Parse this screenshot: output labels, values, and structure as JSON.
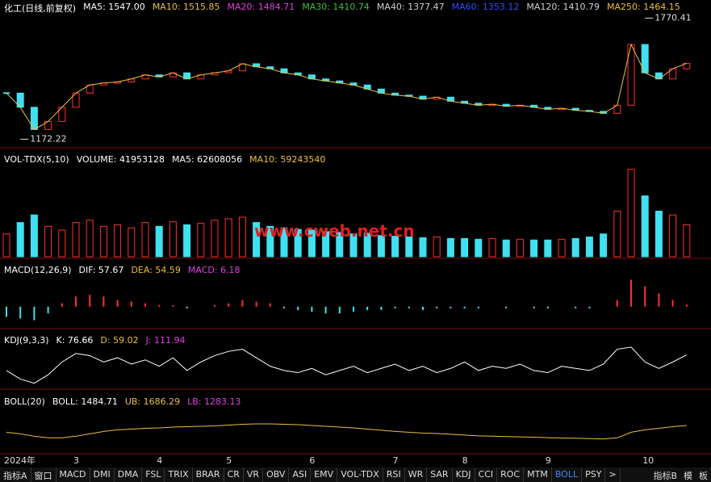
{
  "panels": {
    "price": {
      "header": [
        {
          "text": "化工(日线,前复权)",
          "color": "#ffffff"
        },
        {
          "text": "MA5: 1547.00",
          "color": "#ffffff"
        },
        {
          "text": "MA10: 1515.85",
          "color": "#e8c13f"
        },
        {
          "text": "MA20: 1484.71",
          "color": "#e040e0"
        },
        {
          "text": "MA30: 1410.74",
          "color": "#40c040"
        },
        {
          "text": "MA40: 1377.47",
          "color": "#d0d0d0"
        },
        {
          "text": "MA60: 1353.12",
          "color": "#3050ff"
        },
        {
          "text": "MA120: 1410.79",
          "color": "#d0d0d0"
        },
        {
          "text": "MA250: 1464.15",
          "color": "#e8c13f"
        }
      ],
      "ylim": [
        1150,
        1800
      ],
      "close": [
        1400,
        1330,
        1220,
        1260,
        1330,
        1400,
        1440,
        1450,
        1455,
        1470,
        1490,
        1480,
        1500,
        1470,
        1490,
        1500,
        1510,
        1545,
        1530,
        1520,
        1500,
        1490,
        1470,
        1460,
        1450,
        1440,
        1420,
        1400,
        1390,
        1385,
        1370,
        1380,
        1360,
        1350,
        1340,
        1345,
        1335,
        1340,
        1330,
        1320,
        1325,
        1315,
        1310,
        1300,
        1340,
        1640,
        1500,
        1470,
        1520,
        1547
      ],
      "high": {
        "index": 46,
        "value": 1770.41,
        "label": "1770.41"
      },
      "low": {
        "index": 1,
        "value": 1172.22,
        "label": "1172.22"
      }
    },
    "volume": {
      "header": [
        {
          "text": "VOL-TDX(5,10)",
          "color": "#ffffff"
        },
        {
          "text": "VOLUME: 41953128",
          "color": "#ffffff"
        },
        {
          "text": "MA5: 62608056",
          "color": "#ffffff"
        },
        {
          "text": "MA10: 59243540",
          "color": "#e8c13f"
        }
      ],
      "ylim": [
        0,
        120000000
      ],
      "values": [
        30000000,
        45000000,
        55000000,
        40000000,
        35000000,
        45000000,
        48000000,
        40000000,
        42000000,
        38000000,
        45000000,
        40000000,
        46000000,
        42000000,
        44000000,
        48000000,
        50000000,
        52000000,
        45000000,
        40000000,
        38000000,
        36000000,
        35000000,
        33000000,
        32000000,
        30000000,
        31000000,
        28000000,
        27000000,
        26000000,
        25000000,
        26000000,
        24000000,
        24000000,
        23000000,
        24000000,
        22000000,
        23000000,
        22000000,
        22000000,
        23000000,
        24000000,
        26000000,
        30000000,
        60000000,
        115000000,
        80000000,
        60000000,
        55000000,
        41953128
      ]
    },
    "macd": {
      "header": [
        {
          "text": "MACD(12,26,9)",
          "color": "#ffffff"
        },
        {
          "text": "DIF: 57.67",
          "color": "#ffffff"
        },
        {
          "text": "DEA: 54.59",
          "color": "#e8c13f"
        },
        {
          "text": "MACD: 6.18",
          "color": "#e040e0"
        }
      ],
      "ylim": [
        -60,
        100
      ],
      "values": [
        -30,
        -35,
        -40,
        -20,
        10,
        30,
        35,
        30,
        20,
        15,
        10,
        5,
        5,
        -5,
        0,
        5,
        10,
        20,
        15,
        10,
        -5,
        -10,
        -15,
        -20,
        -20,
        -15,
        -10,
        -10,
        -5,
        -5,
        -10,
        -5,
        -5,
        -5,
        -5,
        0,
        -5,
        0,
        -5,
        -5,
        0,
        -5,
        -5,
        0,
        20,
        80,
        60,
        40,
        20,
        6.18
      ]
    },
    "kdj": {
      "header": [
        {
          "text": "KDJ(9,3,3)",
          "color": "#ffffff"
        },
        {
          "text": "K: 76.66",
          "color": "#ffffff"
        },
        {
          "text": "D: 59.02",
          "color": "#e8c13f"
        },
        {
          "text": "J: 111.94",
          "color": "#e040e0"
        }
      ],
      "ylim": [
        0,
        110
      ],
      "values": [
        40,
        20,
        10,
        30,
        60,
        80,
        75,
        60,
        70,
        55,
        65,
        50,
        70,
        40,
        60,
        75,
        85,
        90,
        70,
        50,
        40,
        35,
        45,
        30,
        40,
        50,
        35,
        45,
        55,
        40,
        50,
        35,
        45,
        60,
        40,
        50,
        45,
        55,
        40,
        35,
        50,
        45,
        40,
        55,
        90,
        95,
        60,
        45,
        60,
        76.66
      ]
    },
    "boll": {
      "header": [
        {
          "text": "BOLL(20)",
          "color": "#ffffff"
        },
        {
          "text": "BOLL: 1484.71",
          "color": "#ffffff"
        },
        {
          "text": "UB: 1686.29",
          "color": "#e8c13f"
        },
        {
          "text": "LB: 1283.13",
          "color": "#e040e0"
        }
      ],
      "ylim": [
        1150,
        1800
      ],
      "values": [
        1400,
        1380,
        1350,
        1330,
        1330,
        1350,
        1380,
        1410,
        1430,
        1440,
        1450,
        1455,
        1465,
        1470,
        1475,
        1480,
        1490,
        1500,
        1505,
        1505,
        1500,
        1495,
        1485,
        1475,
        1465,
        1455,
        1440,
        1425,
        1410,
        1400,
        1390,
        1385,
        1375,
        1365,
        1355,
        1350,
        1345,
        1342,
        1338,
        1332,
        1328,
        1325,
        1320,
        1315,
        1330,
        1400,
        1430,
        1450,
        1470,
        1484.71
      ]
    }
  },
  "x_labels": [
    {
      "index": 0,
      "label": "2024年"
    },
    {
      "index": 5,
      "label": "3"
    },
    {
      "index": 11,
      "label": "4"
    },
    {
      "index": 16,
      "label": "5"
    },
    {
      "index": 22,
      "label": "6"
    },
    {
      "index": 28,
      "label": "7"
    },
    {
      "index": 33,
      "label": "8"
    },
    {
      "index": 39,
      "label": "9"
    },
    {
      "index": 46,
      "label": "10"
    }
  ],
  "tabs": [
    "指标A",
    "窗口",
    "MACD",
    "DMI",
    "DMA",
    "FSL",
    "TRIX",
    "BRAR",
    "CR",
    "VR",
    "OBV",
    "ASI",
    "EMV",
    "VOL-TDX",
    "RSI",
    "WR",
    "SAR",
    "KDJ",
    "CCI",
    "ROC",
    "MTM",
    "BOLL",
    "PSY",
    ">"
  ],
  "active_tab": "BOLL",
  "tabs_right": [
    "指标B",
    "模",
    "板"
  ],
  "watermark": "www.cweb.net.cn"
}
